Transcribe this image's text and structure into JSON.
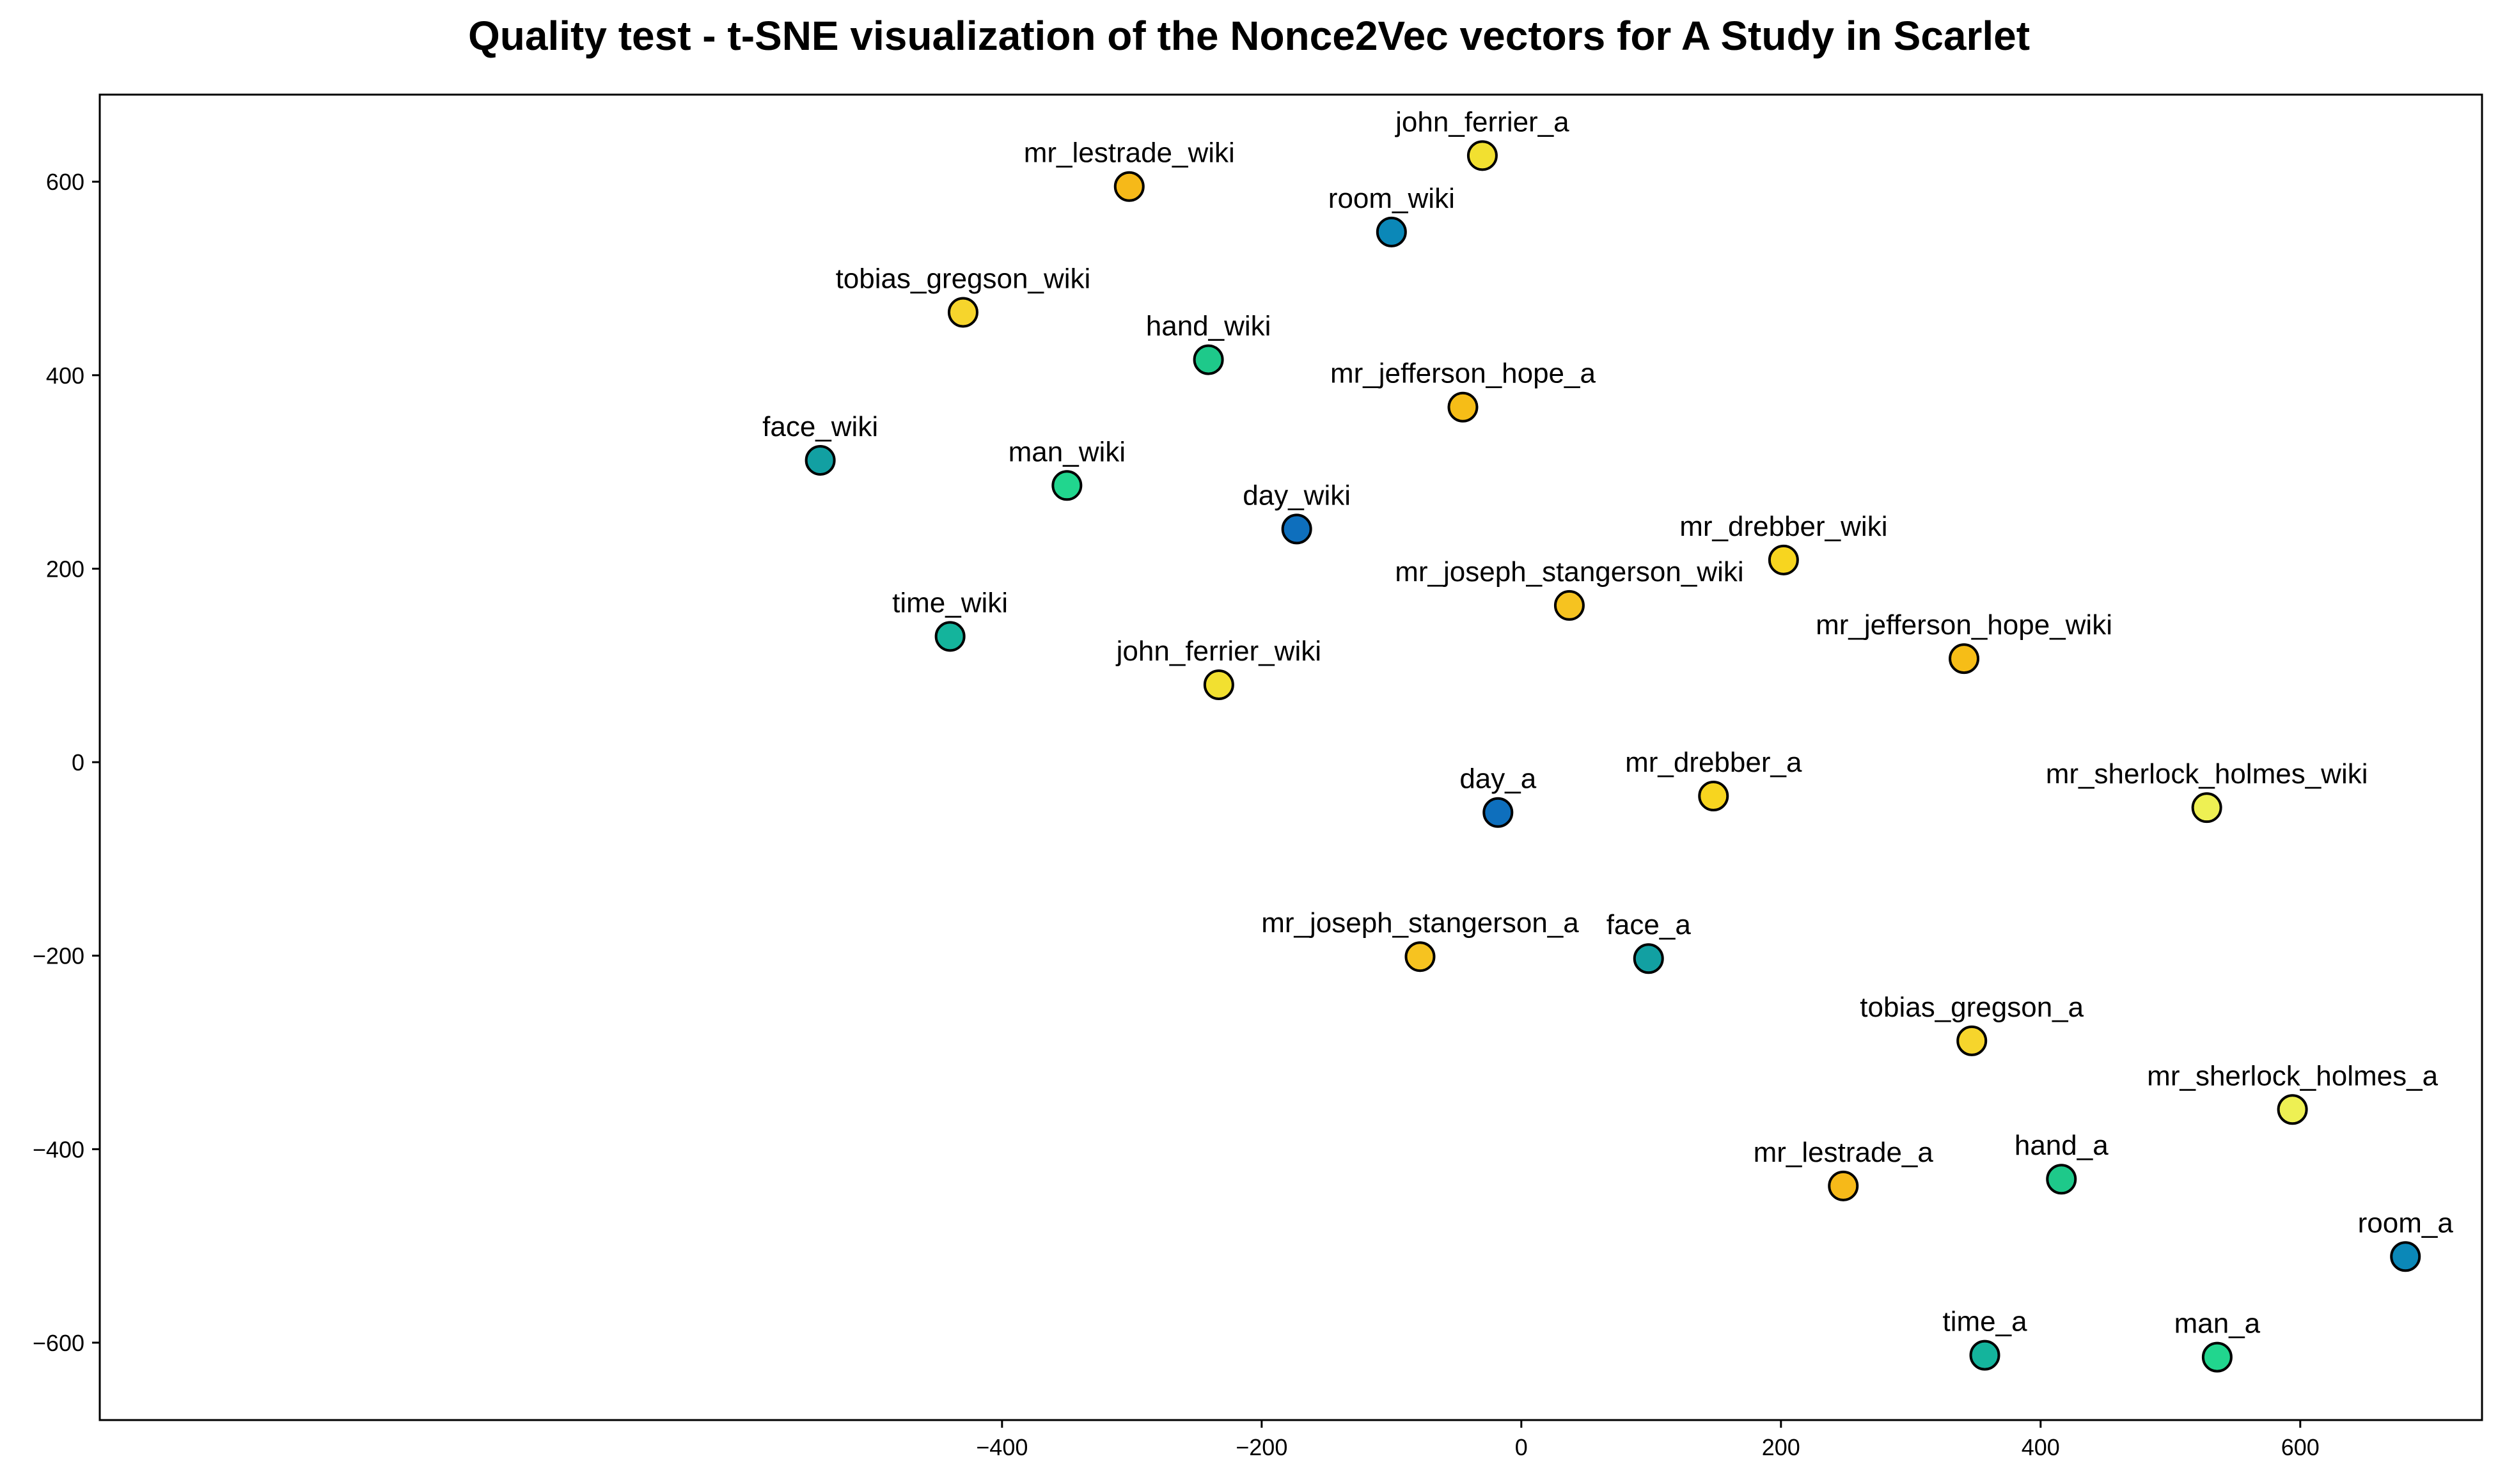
{
  "chart_data": {
    "type": "scatter",
    "title": "Quality test - t-SNE visualization of the Nonce2Vec vectors for A Study in Scarlet",
    "xlabel": "",
    "ylabel": "",
    "xlim": [
      -1095,
      740
    ],
    "ylim": [
      -680,
      690
    ],
    "xticks": [
      -400,
      -200,
      0,
      200,
      400,
      600
    ],
    "yticks": [
      -600,
      -400,
      -200,
      0,
      200,
      400,
      600
    ],
    "xtick_labels": [
      "−400",
      "−200",
      "0",
      "200",
      "400",
      "600"
    ],
    "ytick_labels": [
      "−600",
      "−400",
      "−200",
      "0",
      "200",
      "400",
      "600"
    ],
    "grid": false,
    "points": [
      {
        "label": "john_ferrier_a",
        "x": -30,
        "y": 627,
        "color": "#f2e030"
      },
      {
        "label": "mr_lestrade_wiki",
        "x": -302,
        "y": 595,
        "color": "#f6b919"
      },
      {
        "label": "room_wiki",
        "x": -100,
        "y": 548,
        "color": "#0b88b8"
      },
      {
        "label": "tobias_gregson_wiki",
        "x": -430,
        "y": 465,
        "color": "#f6d52c"
      },
      {
        "label": "hand_wiki",
        "x": -241,
        "y": 416,
        "color": "#1ec98a"
      },
      {
        "label": "mr_jefferson_hope_a",
        "x": -45,
        "y": 367,
        "color": "#f6bd17"
      },
      {
        "label": "face_wiki",
        "x": -540,
        "y": 312,
        "color": "#12a0a2"
      },
      {
        "label": "man_wiki",
        "x": -350,
        "y": 286,
        "color": "#21d68e"
      },
      {
        "label": "day_wiki",
        "x": -173,
        "y": 241,
        "color": "#0e6fbd"
      },
      {
        "label": "mr_drebber_wiki",
        "x": 202,
        "y": 209,
        "color": "#f7d51f"
      },
      {
        "label": "mr_joseph_stangerson_wiki",
        "x": 37,
        "y": 162,
        "color": "#f6c320"
      },
      {
        "label": "time_wiki",
        "x": -440,
        "y": 130,
        "color": "#14b49c"
      },
      {
        "label": "mr_jefferson_hope_wiki",
        "x": 341,
        "y": 107,
        "color": "#f6bd17"
      },
      {
        "label": "john_ferrier_wiki",
        "x": -233,
        "y": 80,
        "color": "#f2e030"
      },
      {
        "label": "mr_drebber_a",
        "x": 148,
        "y": -35,
        "color": "#f7d51f"
      },
      {
        "label": "mr_sherlock_holmes_wiki",
        "x": 528,
        "y": -47,
        "color": "#eef053"
      },
      {
        "label": "day_a",
        "x": -18,
        "y": -52,
        "color": "#0e6fbd"
      },
      {
        "label": "mr_joseph_stangerson_a",
        "x": -78,
        "y": -201,
        "color": "#f6c320"
      },
      {
        "label": "face_a",
        "x": 98,
        "y": -203,
        "color": "#12a0a2"
      },
      {
        "label": "tobias_gregson_a",
        "x": 347,
        "y": -288,
        "color": "#f6d52c"
      },
      {
        "label": "mr_sherlock_holmes_a",
        "x": 594,
        "y": -359,
        "color": "#eef053"
      },
      {
        "label": "hand_a",
        "x": 416,
        "y": -431,
        "color": "#1ec98a"
      },
      {
        "label": "mr_lestrade_a",
        "x": 248,
        "y": -438,
        "color": "#f6b919"
      },
      {
        "label": "room_a",
        "x": 681,
        "y": -511,
        "color": "#0b88b8"
      },
      {
        "label": "time_a",
        "x": 357,
        "y": -613,
        "color": "#14b49c"
      },
      {
        "label": "man_a",
        "x": 536,
        "y": -615,
        "color": "#21d68e"
      }
    ]
  }
}
